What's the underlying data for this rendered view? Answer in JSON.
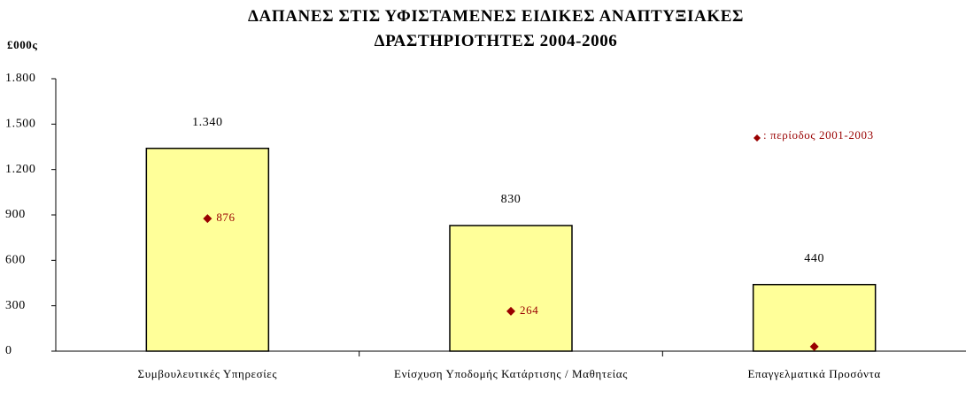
{
  "chart_data": {
    "type": "bar",
    "title": "ΔΑΠΑΝΕΣ ΣΤΙΣ ΥΦΙΣΤΑΜΕΝΕΣ ΕΙΔΙΚΕΣ ΑΝΑΠΤΥΞΙΑΚΕΣ ΔΡΑΣΤΗΡΙΟΤΗΤΕΣ 2004-2006",
    "y_label": "£000ς",
    "categories": [
      "Συμβουλευτικές Υπηρεσίες",
      "Ενίσχυση Υποδομής Κατάρτισης / Μαθητείας",
      "Επαγγελματικά Προσόντα"
    ],
    "series": [
      {
        "type": "bar",
        "color": "#ffff99",
        "values": [
          1340,
          830,
          440
        ],
        "value_labels": [
          "1.340",
          "830",
          "440"
        ]
      },
      {
        "type": "marker",
        "name": ": περίοδος 2001-2003",
        "color": "#990000",
        "values": [
          876,
          264,
          30
        ],
        "value_labels": [
          "876",
          "264",
          null
        ]
      }
    ],
    "ylim": [
      0,
      1800
    ],
    "yticks": [
      0,
      300,
      600,
      900,
      {
        "value": 1200,
        "label": "1.200"
      },
      {
        "value": 1500,
        "label": "1.500"
      },
      {
        "value": 1800,
        "label": "1.800"
      }
    ],
    "legend": "top-right"
  }
}
